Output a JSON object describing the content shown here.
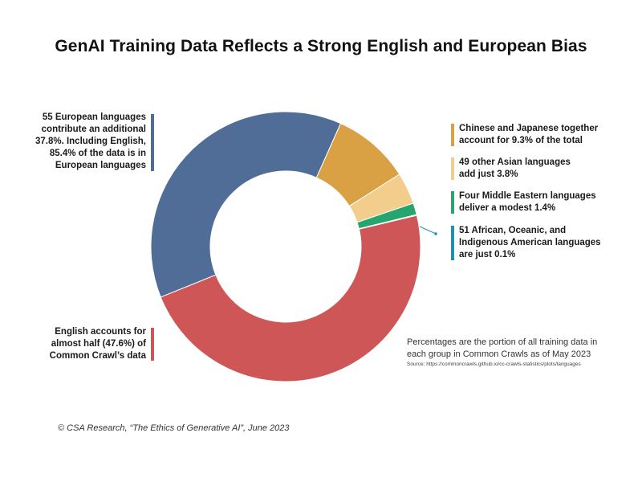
{
  "chart_data": {
    "type": "pie",
    "title": "GenAI Training Data Reflects a Strong English and European Bias",
    "unit": "%",
    "slices": [
      {
        "name": "European languages",
        "value": 37.8,
        "color": "#4f6d97"
      },
      {
        "name": "Chinese and Japanese",
        "value": 9.3,
        "color": "#d9a144"
      },
      {
        "name": "Other Asian languages",
        "value": 3.8,
        "color": "#f3cd8b"
      },
      {
        "name": "Middle Eastern languages",
        "value": 1.4,
        "color": "#27a56f"
      },
      {
        "name": "African, Oceanic, and Indigenous American languages",
        "value": 0.1,
        "color": "#1a93ad"
      },
      {
        "name": "English",
        "value": 47.6,
        "color": "#cf5656"
      }
    ]
  },
  "annotations": {
    "european": {
      "lines": [
        "55 European languages",
        "contribute an additional",
        "37.8%. Including English,",
        "85.4% of the data is in",
        "European languages"
      ],
      "color": "#4f6d97"
    },
    "english": {
      "lines": [
        "English accounts for",
        "almost half (47.6%) of",
        "Common Crawl’s data"
      ],
      "color": "#cf5656"
    },
    "chinese_japanese": {
      "lines": [
        "Chinese and Japanese together",
        "account for 9.3% of the total"
      ],
      "color": "#d9a144"
    },
    "other_asian": {
      "lines": [
        "49 other Asian languages",
        "add just 3.8%"
      ],
      "color": "#f3cd8b"
    },
    "middle_eastern": {
      "lines": [
        "Four Middle Eastern languages",
        "deliver a modest 1.4%"
      ],
      "color": "#27a56f"
    },
    "african_oceanic": {
      "lines": [
        "51 African, Oceanic, and",
        "Indigenous American languages",
        "are just 0.1%"
      ],
      "color": "#1a93ad"
    }
  },
  "note": {
    "line1": "Percentages are the portion of all training data in",
    "line2": "each group in Common Crawls as of May 2023",
    "source": "Source: https://commoncrawls.github.io/cc-crawls-statistics/plots/languages"
  },
  "credit": "© CSA Research, “The Ethics of Generative AI”, June 2023"
}
